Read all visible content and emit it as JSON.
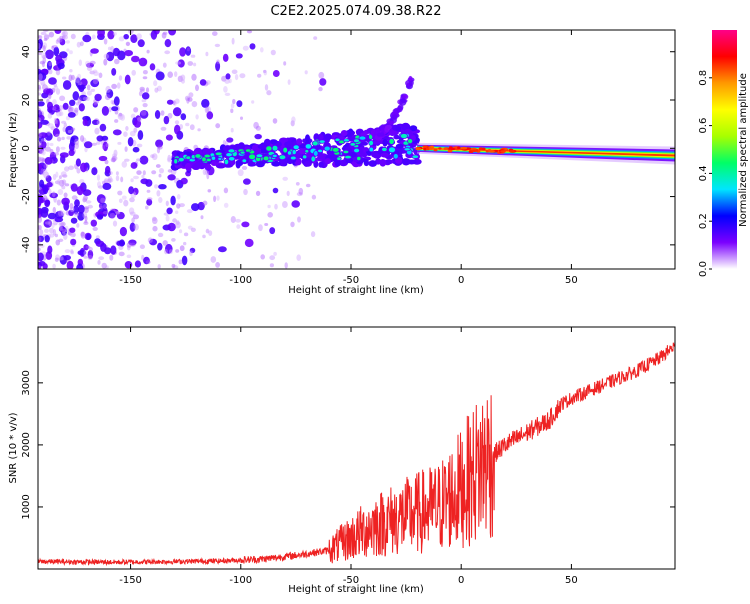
{
  "figure_title": "C2E2.2025.074.09.38.R22",
  "chart_data": [
    {
      "type": "heatmap",
      "title": "C2E2.2025.074.09.38.R22",
      "xlabel": "Height of straight line (km)",
      "ylabel": "Frequency (Hz)",
      "xlim": [
        -192,
        97
      ],
      "ylim": [
        -50,
        49
      ],
      "x_ticks": [
        -150,
        -100,
        -50,
        0,
        50
      ],
      "y_ticks": [
        -40,
        -20,
        0,
        20,
        40
      ],
      "grid": false,
      "colorbar": {
        "label": "Normalized spectral amplitude",
        "range": [
          0,
          1
        ],
        "ticks": [
          0.0,
          0.2,
          0.4,
          0.6,
          0.8
        ],
        "colors": [
          "#ffffff",
          "#7b00ff",
          "#0000ff",
          "#00e5ff",
          "#00ff66",
          "#a8ff00",
          "#ffff00",
          "#ff9900",
          "#ff0000",
          "#ff0088"
        ]
      },
      "features": [
        {
          "name": "",
          "x_range": [
            -192,
            -120
          ],
          "freq_range": [
            -50,
            49
          ],
          "amplitude": 0.15
        },
        {
          "name": "",
          "x_range": [
            -130,
            -20
          ],
          "freq_start": -5,
          "freq_end": 2,
          "amplitude": 0.4
        },
        {
          "name": "",
          "x_range": [
            -40,
            -22
          ],
          "freq_start": 5,
          "freq_end": 30,
          "amplitude": 0.15
        },
        {
          "name": "",
          "x_range": [
            -20,
            97
          ],
          "freq_start": 0,
          "freq_end": -3,
          "amplitude": 0.85
        }
      ]
    },
    {
      "type": "line",
      "xlabel": "Height of straight line (km)",
      "ylabel": "SNR (10 * v/v)",
      "xlim": [
        -192,
        97
      ],
      "ylim": [
        0,
        3900
      ],
      "x_ticks": [
        -150,
        -100,
        -50,
        0,
        50
      ],
      "y_ticks": [
        1000,
        2000,
        3000
      ],
      "grid": false,
      "series": [
        {
          "name": "",
          "color": "#ee2222",
          "x": [
            -192,
            -160,
            -130,
            -110,
            -90,
            -75,
            -60,
            -50,
            -40,
            -30,
            -20,
            -10,
            0,
            10,
            20,
            30,
            40,
            45,
            50,
            60,
            70,
            80,
            90,
            97
          ],
          "y": [
            120,
            110,
            120,
            130,
            160,
            220,
            300,
            500,
            700,
            800,
            900,
            1000,
            1300,
            1700,
            2000,
            2200,
            2400,
            2650,
            2750,
            2900,
            3050,
            3200,
            3400,
            3600
          ]
        }
      ]
    }
  ]
}
